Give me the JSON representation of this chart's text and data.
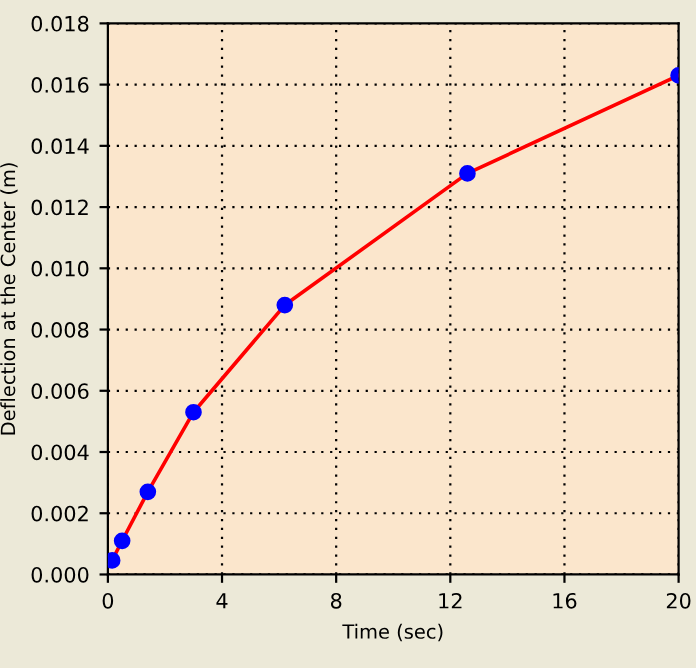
{
  "chart_data": {
    "type": "line",
    "xlabel": "Time (sec)",
    "ylabel": "Deflection at the Center (m)",
    "x": [
      0.15,
      0.5,
      1.4,
      3.0,
      6.2,
      12.6,
      20.0
    ],
    "series": [
      {
        "color": "#ff0000",
        "values": [
          0.00046,
          0.0011,
          0.0027,
          0.0053,
          0.0088,
          0.0131,
          0.0163
        ]
      }
    ],
    "xlim": [
      0,
      20
    ],
    "xticks": [
      0,
      4,
      8,
      12,
      16,
      20
    ],
    "ylim": [
      0,
      0.018
    ],
    "yticks": [
      {
        "value": 0,
        "label": "0.000"
      },
      {
        "value": 0.002,
        "label": "0.002"
      },
      {
        "value": 0.004,
        "label": "0.004"
      },
      {
        "value": 0.006,
        "label": "0.006"
      },
      {
        "value": 0.008,
        "label": "0.008"
      },
      {
        "value": 0.01,
        "label": "0.010"
      },
      {
        "value": 0.012,
        "label": "0.012"
      },
      {
        "value": 0.014,
        "label": "0.014"
      },
      {
        "value": 0.016,
        "label": "0.016"
      },
      {
        "value": 0.018,
        "label": "0.018"
      }
    ],
    "grid": true,
    "marker": "circle",
    "line_style": "solid"
  }
}
